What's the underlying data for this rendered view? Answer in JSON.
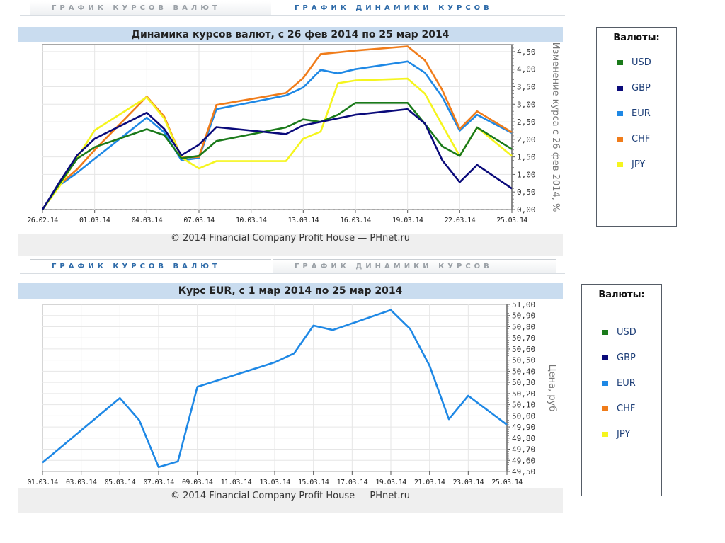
{
  "top_tabs": [
    {
      "label": "ГРАФИК КУРСОВ ВАЛЮТ",
      "active": false
    },
    {
      "label": "ГРАФИК ДИНАМИКИ КУРСОВ",
      "active": true
    }
  ],
  "bottom_tabs": [
    {
      "label": "ГРАФИК КУРСОВ ВАЛЮТ",
      "active": true
    },
    {
      "label": "ГРАФИК ДИНАМИКИ КУРСОВ",
      "active": false
    }
  ],
  "copyright": "© 2014 Financial Company Profit House — PHnet.ru",
  "legend": {
    "title": "Валюты:",
    "items": [
      {
        "label": "USD",
        "color": "#1a7a1a"
      },
      {
        "label": "GBP",
        "color": "#0a0a7a"
      },
      {
        "label": "EUR",
        "color": "#1e88e5"
      },
      {
        "label": "CHF",
        "color": "#f07c1a"
      },
      {
        "label": "JPY",
        "color": "#f5f51e"
      }
    ]
  },
  "chart_data": [
    {
      "type": "line",
      "title": "Динамика курсов валют, с 26 фев 2014 по 25 мар 2014",
      "xlabel": "",
      "ylabel": "Изменение курса с 26 фев 2014, %",
      "x_tick_labels": [
        "26.02.14",
        "01.03.14",
        "04.03.14",
        "07.03.14",
        "10.03.14",
        "13.03.14",
        "16.03.14",
        "19.03.14",
        "22.03.14",
        "25.03.14"
      ],
      "y_tick_labels": [
        "0,00",
        "0,50",
        "1,00",
        "1,50",
        "2,00",
        "2,50",
        "3,00",
        "3,50",
        "4,00",
        "4,50"
      ],
      "ylim": [
        0,
        4.7
      ],
      "x_day_range": [
        0,
        27
      ],
      "x_days": [
        0,
        1,
        2,
        3,
        6,
        7,
        8,
        9,
        10,
        14,
        15,
        16,
        17,
        18,
        21,
        22,
        23,
        24,
        25,
        27
      ],
      "grid": true,
      "series": [
        {
          "name": "USD",
          "values": [
            0,
            0.75,
            1.45,
            1.78,
            2.29,
            2.12,
            1.46,
            1.53,
            1.95,
            2.34,
            2.57,
            2.5,
            2.7,
            3.04,
            3.04,
            2.44,
            1.8,
            1.53,
            2.34,
            1.72
          ]
        },
        {
          "name": "GBP",
          "values": [
            0,
            0.8,
            1.55,
            2.02,
            2.76,
            2.3,
            1.55,
            1.85,
            2.35,
            2.15,
            2.4,
            2.5,
            2.6,
            2.7,
            2.86,
            2.45,
            1.4,
            0.78,
            1.27,
            0.6
          ]
        },
        {
          "name": "EUR",
          "values": [
            0,
            0.7,
            1.05,
            1.45,
            2.62,
            2.2,
            1.4,
            1.47,
            2.86,
            3.25,
            3.48,
            3.98,
            3.88,
            4.0,
            4.22,
            3.9,
            3.2,
            2.25,
            2.7,
            2.18
          ]
        },
        {
          "name": "CHF",
          "values": [
            0,
            0.72,
            1.15,
            1.7,
            3.22,
            2.65,
            1.48,
            1.5,
            2.98,
            3.32,
            3.75,
            4.43,
            4.48,
            4.53,
            4.65,
            4.25,
            3.4,
            2.3,
            2.8,
            2.2
          ]
        },
        {
          "name": "JPY",
          "values": [
            0,
            0.68,
            1.48,
            2.26,
            3.2,
            2.6,
            1.48,
            1.17,
            1.38,
            1.38,
            2.02,
            2.22,
            3.6,
            3.68,
            3.73,
            3.3,
            2.4,
            1.53,
            2.34,
            1.53
          ]
        }
      ]
    },
    {
      "type": "line",
      "title": "Курс EUR, с 1 мар 2014 по 25 мар 2014",
      "xlabel": "",
      "ylabel": "Цена, руб",
      "x_tick_labels": [
        "01.03.14",
        "03.03.14",
        "05.03.14",
        "07.03.14",
        "09.03.14",
        "11.03.14",
        "13.03.14",
        "15.03.14",
        "17.03.14",
        "19.03.14",
        "21.03.14",
        "23.03.14",
        "25.03.14"
      ],
      "y_tick_labels": [
        "49,50",
        "49,60",
        "49,70",
        "49,80",
        "49,90",
        "50,00",
        "50,10",
        "50,20",
        "50,30",
        "50,40",
        "50,50",
        "50,60",
        "50,70",
        "50,80",
        "50,90",
        "51,00"
      ],
      "ylim": [
        49.5,
        51.0
      ],
      "x_day_range": [
        0,
        24
      ],
      "x_days": [
        0,
        4,
        5,
        6,
        7,
        8,
        12,
        13,
        14,
        15,
        18,
        19,
        20,
        21,
        22,
        24
      ],
      "grid": true,
      "series": [
        {
          "name": "EUR",
          "values": [
            49.58,
            50.16,
            49.96,
            49.54,
            49.59,
            50.26,
            50.48,
            50.56,
            50.81,
            50.77,
            50.95,
            50.78,
            50.45,
            49.97,
            50.18,
            49.92
          ]
        }
      ]
    }
  ]
}
